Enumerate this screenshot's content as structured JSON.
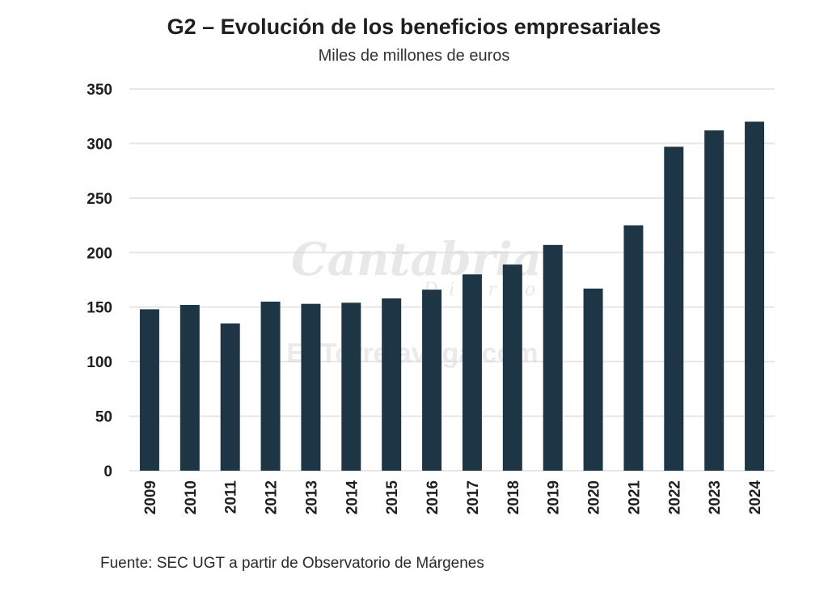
{
  "chart_data": {
    "type": "bar",
    "title": "G2 – Evolución de los beneficios empresariales",
    "subtitle": "Miles de millones de euros",
    "categories": [
      "2009",
      "2010",
      "2011",
      "2012",
      "2013",
      "2014",
      "2015",
      "2016",
      "2017",
      "2018",
      "2019",
      "2020",
      "2021",
      "2022",
      "2023",
      "2024"
    ],
    "values": [
      148,
      152,
      135,
      155,
      153,
      154,
      158,
      166,
      180,
      189,
      207,
      167,
      225,
      297,
      312,
      320
    ],
    "xlabel": "",
    "ylabel": "",
    "ylim": [
      0,
      350
    ],
    "yticks": [
      0,
      50,
      100,
      150,
      200,
      250,
      300,
      350
    ],
    "grid": true,
    "bar_color": "#1d3545",
    "grid_color": "#e6e6e6"
  },
  "source": "Fuente: SEC UGT a partir de Observatorio de Márgenes",
  "watermark": {
    "brand": "Cantabria",
    "tagline": "Diario",
    "site": "EsTorrelavega.com"
  }
}
